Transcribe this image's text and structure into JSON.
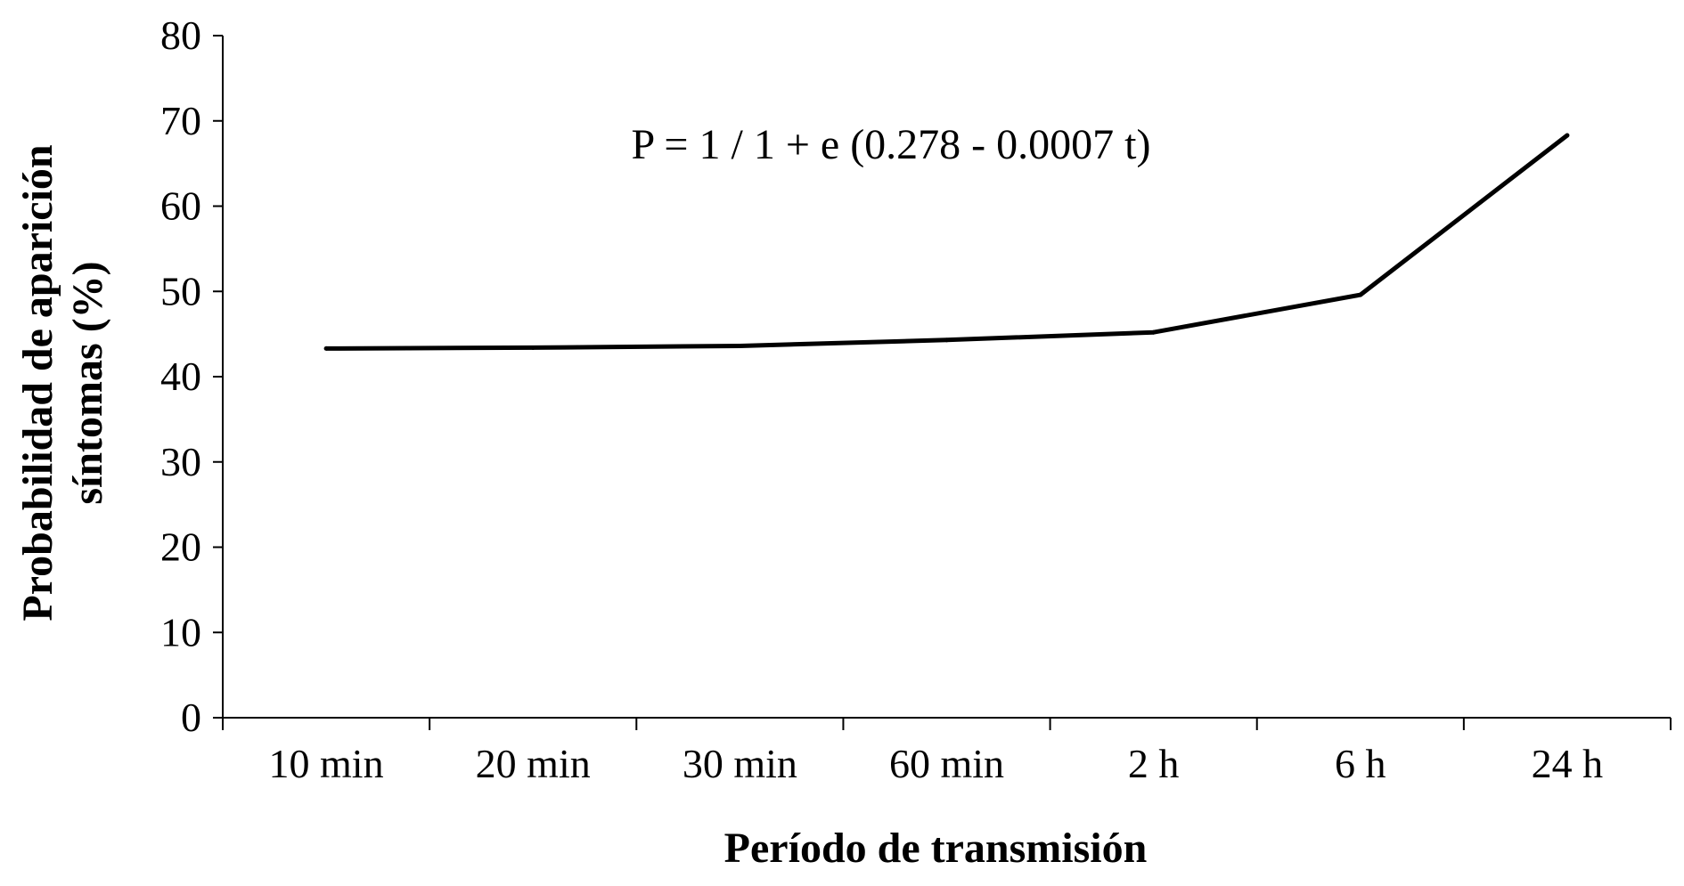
{
  "chart_data": {
    "type": "line",
    "title": "",
    "xlabel": "Período de transmisión",
    "ylabel_lines": [
      "Probabilidad de aparición",
      "síntomas (%)"
    ],
    "categories": [
      "10 min",
      "20 min",
      "30 min",
      "60 min",
      "2 h",
      "6 h",
      "24 h"
    ],
    "series": [
      {
        "values": [
          43.3,
          43.4,
          43.6,
          44.3,
          45.2,
          49.6,
          68.3
        ]
      }
    ],
    "ylim": [
      0,
      80
    ],
    "yticks": [
      0,
      10,
      20,
      30,
      40,
      50,
      60,
      70,
      80
    ],
    "grid": false,
    "legend": "none",
    "annotations": [
      "P = 1 / 1 + e (0.278 - 0.0007 t)"
    ],
    "colors": {
      "line": "#000000",
      "axis": "#000000",
      "background": "#ffffff"
    }
  }
}
